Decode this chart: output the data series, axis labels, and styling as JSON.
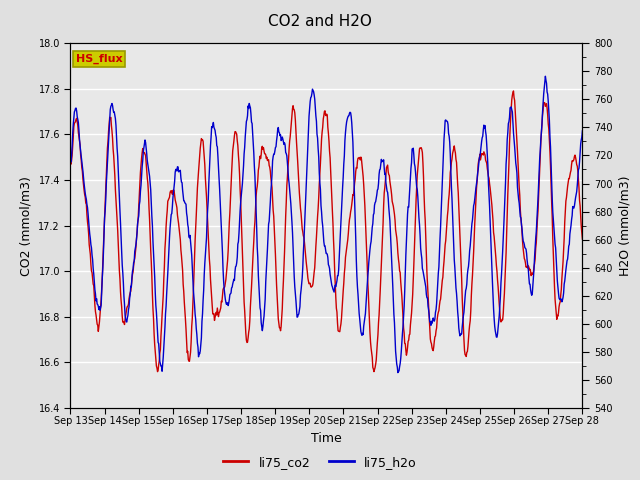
{
  "title": "CO2 and H2O",
  "xlabel": "Time",
  "ylabel_left": "CO2 (mmol/m3)",
  "ylabel_right": "H2O (mmol/m3)",
  "annotation_text": "HS_flux",
  "annotation_color": "#cc0000",
  "annotation_bg": "#cccc00",
  "x_tick_labels": [
    "Sep 13",
    "Sep 14",
    "Sep 15",
    "Sep 16",
    "Sep 17",
    "Sep 18",
    "Sep 19",
    "Sep 20",
    "Sep 21",
    "Sep 22",
    "Sep 23",
    "Sep 24",
    "Sep 25",
    "Sep 26",
    "Sep 27",
    "Sep 28"
  ],
  "ylim_left": [
    16.4,
    18.0
  ],
  "ylim_right": [
    540,
    800
  ],
  "yticks_left": [
    16.4,
    16.6,
    16.8,
    17.0,
    17.2,
    17.4,
    17.6,
    17.8,
    18.0
  ],
  "yticks_right": [
    540,
    560,
    580,
    600,
    620,
    640,
    660,
    680,
    700,
    720,
    740,
    760,
    780,
    800
  ],
  "legend_labels": [
    "li75_co2",
    "li75_h2o"
  ],
  "co2_color": "#cc0000",
  "h2o_color": "#0000cc",
  "line_width": 1.0,
  "bg_color": "#e0e0e0",
  "plot_bg_color": "#e8e8e8",
  "grid_color": "#ffffff"
}
